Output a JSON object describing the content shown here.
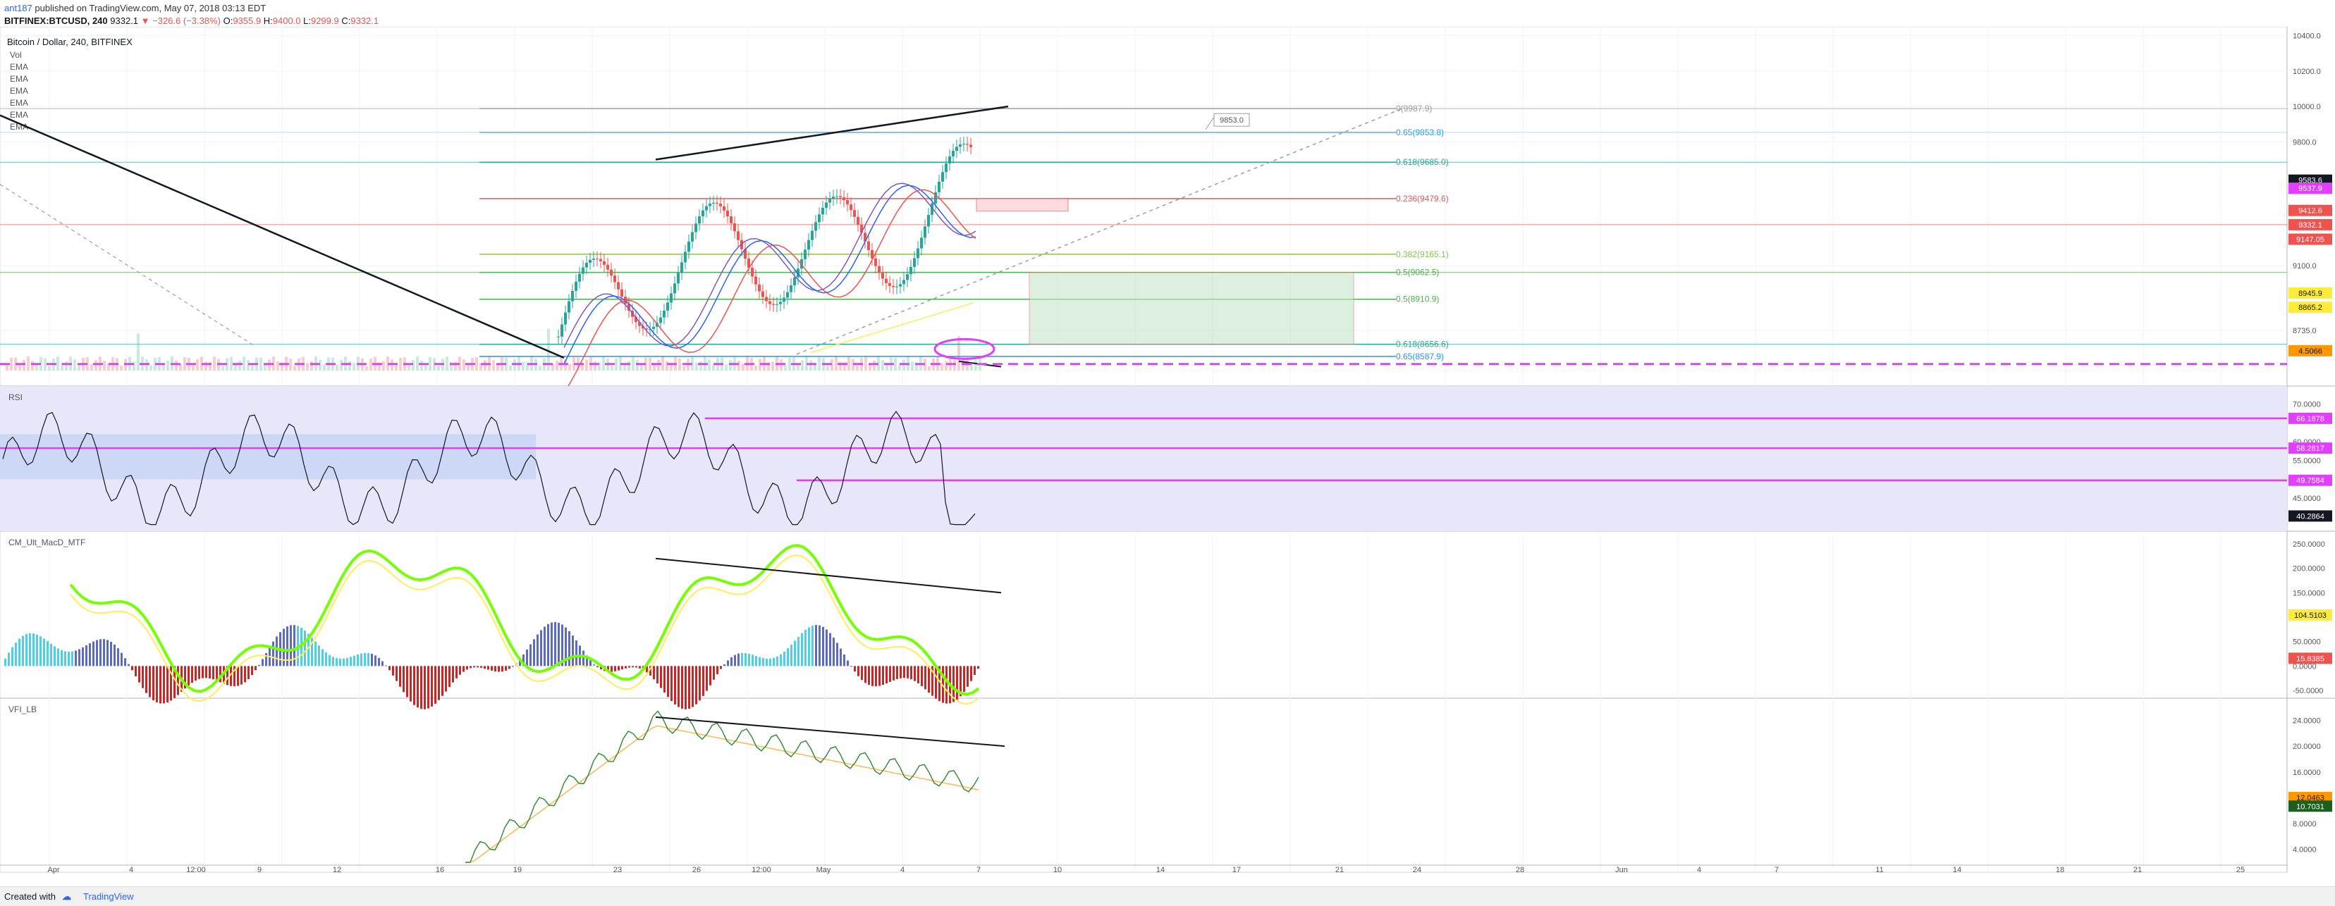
{
  "header": {
    "author": "ant187",
    "published_text": "published on TradingView.com, May 07, 2018 03:13 EDT",
    "symbol_line": "BITFINEX:BTCUSD, 240",
    "last": "9332.1",
    "change": "▼ −326.6 (−3.38%)",
    "ohlc": {
      "O": "9355.9",
      "H": "9400.0",
      "L": "9299.9",
      "C": "9332.1"
    }
  },
  "footer": {
    "created_with": "Created with",
    "brand": "TradingView"
  },
  "chart_data": [
    {
      "type": "candlestick",
      "title": "Bitcoin / Dollar, 240, BITFINEX",
      "indicators": [
        "Vol",
        "EMA",
        "EMA",
        "EMA",
        "EMA",
        "EMA",
        "EMA"
      ],
      "y_ticks": [
        "10400.0",
        "10200.0",
        "10000.0",
        "9800.0",
        "9100.0",
        "8735.0"
      ],
      "price_labels": [
        {
          "text": "9583.6",
          "bg": "#131722"
        },
        {
          "text": "9537.9",
          "bg": "#e040fb"
        },
        {
          "text": "9412.6",
          "bg": "#ef5350"
        },
        {
          "text": "9332.1",
          "bg": "#ef5350"
        },
        {
          "text": "9147.05",
          "bg": "#ef5350"
        },
        {
          "text": "8945.9",
          "bg": "#ffeb3b"
        },
        {
          "text": "8865.2",
          "bg": "#ffeb3b"
        },
        {
          "text": "4.5066",
          "bg": "#ff9800"
        }
      ],
      "fib_levels": [
        {
          "label": "0(9987.9)",
          "value": 9987.9,
          "color": "#9e9e9e"
        },
        {
          "label": "0.65(9853.8)",
          "value": 9853.8,
          "color": "#2196f3"
        },
        {
          "label": "0.618(9685.0)",
          "value": 9685.0,
          "color": "#26a69a"
        },
        {
          "label": "0.236(9479.6)",
          "value": 9479.6,
          "color": "#ef5350"
        },
        {
          "label": "0.382(9165.1)",
          "value": 9165.1,
          "color": "#8bc34a"
        },
        {
          "label": "0.5(9062.5)",
          "value": 9062.5,
          "color": "#4caf50"
        },
        {
          "label": "0.5(8910.9)",
          "value": 8910.9,
          "color": "#4caf50"
        },
        {
          "label": "0.618(8656.6)",
          "value": 8656.6,
          "color": "#26a69a"
        },
        {
          "label": "0.65(8587.9)",
          "value": 8587.9,
          "color": "#2196f3"
        }
      ],
      "callout": "9853.0",
      "x_ticks": [
        "Apr",
        "4",
        "12:00",
        "9",
        "12",
        "16",
        "19",
        "23",
        "26",
        "12:00",
        "May",
        "4",
        "7",
        "10",
        "14",
        "17",
        "21",
        "24",
        "28",
        "Jun",
        "4",
        "7",
        "11",
        "14",
        "18",
        "21",
        "25"
      ]
    },
    {
      "type": "line",
      "title": "RSI",
      "y_ticks": [
        "70.0000",
        "60.0000",
        "55.0000",
        "45.0000"
      ],
      "value_labels": [
        {
          "text": "66.1878",
          "bg": "#e040fb"
        },
        {
          "text": "58.2817",
          "bg": "#e040fb"
        },
        {
          "text": "49.7584",
          "bg": "#e040fb"
        },
        {
          "text": "40.2864",
          "bg": "#131722"
        }
      ]
    },
    {
      "type": "histogram",
      "title": "CM_Ult_MacD_MTF",
      "y_ticks": [
        "250.0000",
        "200.0000",
        "150.0000",
        "50.0000",
        "0.0000",
        "-50.0000"
      ],
      "value_labels": [
        {
          "text": "104.5103",
          "bg": "#ffeb3b"
        },
        {
          "text": "15.8385",
          "bg": "#ef5350"
        }
      ]
    },
    {
      "type": "line",
      "title": "VFI_LB",
      "y_ticks": [
        "24.0000",
        "20.0000",
        "16.0000",
        "8.0000",
        "4.0000"
      ],
      "value_labels": [
        {
          "text": "12.0463",
          "bg": "#ff9800"
        },
        {
          "text": "10.7031",
          "bg": "#1b5e20"
        }
      ]
    }
  ]
}
